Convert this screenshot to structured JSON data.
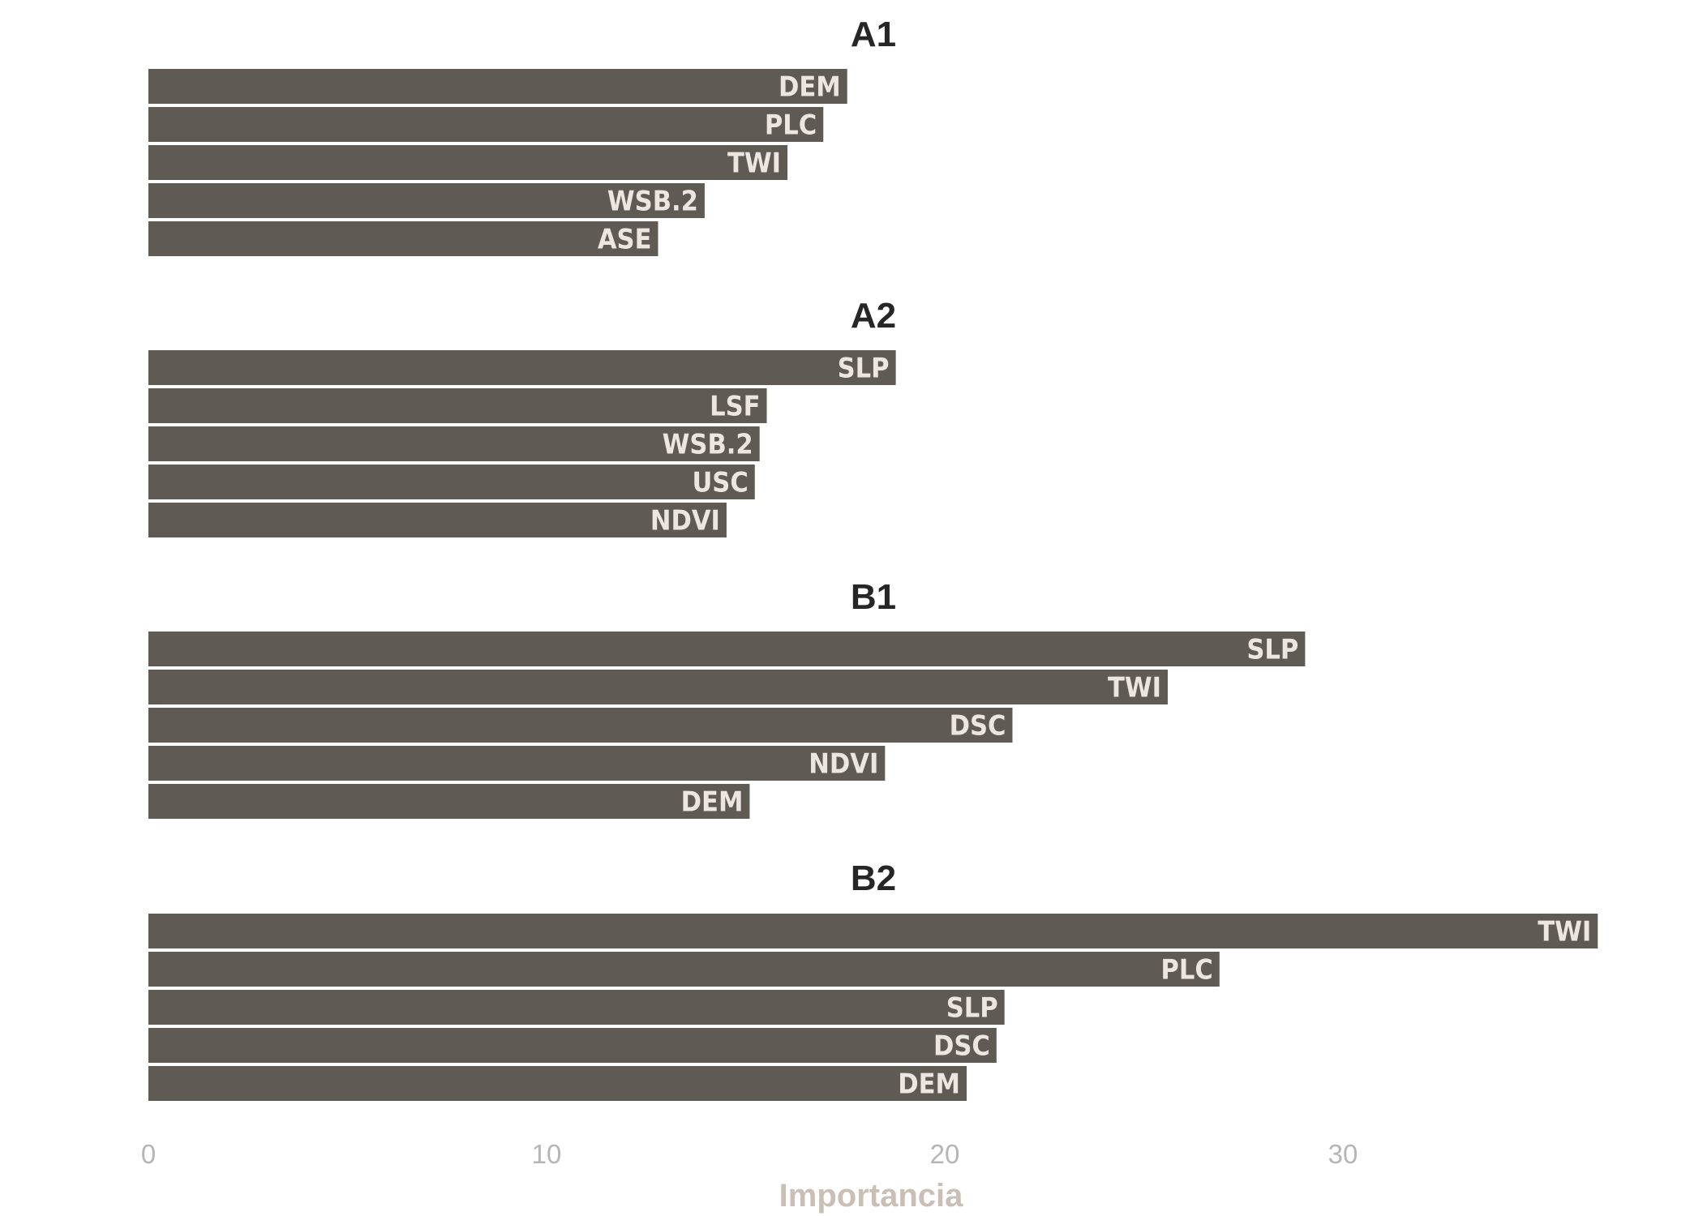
{
  "chart_data": {
    "type": "bar",
    "orientation": "horizontal",
    "xlabel": "Importancia",
    "xlim": [
      0,
      37
    ],
    "xticks": [
      0,
      10,
      20,
      30
    ],
    "grid": false,
    "colors": {
      "bar": "#5f5a53",
      "label": "#ece6df"
    },
    "panels": [
      {
        "title": "A1",
        "bars": [
          {
            "label": "DEM",
            "value": 17.55
          },
          {
            "label": "PLC",
            "value": 16.95
          },
          {
            "label": "TWI",
            "value": 16.05
          },
          {
            "label": "WSB.2",
            "value": 13.97
          },
          {
            "label": "ASE",
            "value": 12.8
          }
        ]
      },
      {
        "title": "A2",
        "bars": [
          {
            "label": "SLP",
            "value": 18.77
          },
          {
            "label": "LSF",
            "value": 15.53
          },
          {
            "label": "WSB.2",
            "value": 15.35
          },
          {
            "label": "USC",
            "value": 15.23
          },
          {
            "label": "NDVI",
            "value": 14.52
          }
        ]
      },
      {
        "title": "B1",
        "bars": [
          {
            "label": "SLP",
            "value": 29.05
          },
          {
            "label": "TWI",
            "value": 25.6
          },
          {
            "label": "DSC",
            "value": 21.7
          },
          {
            "label": "NDVI",
            "value": 18.5
          },
          {
            "label": "DEM",
            "value": 15.1
          }
        ]
      },
      {
        "title": "B2",
        "bars": [
          {
            "label": "TWI",
            "value": 36.4
          },
          {
            "label": "PLC",
            "value": 26.9
          },
          {
            "label": "SLP",
            "value": 21.5
          },
          {
            "label": "DSC",
            "value": 21.3
          },
          {
            "label": "DEM",
            "value": 20.55
          }
        ]
      }
    ]
  }
}
